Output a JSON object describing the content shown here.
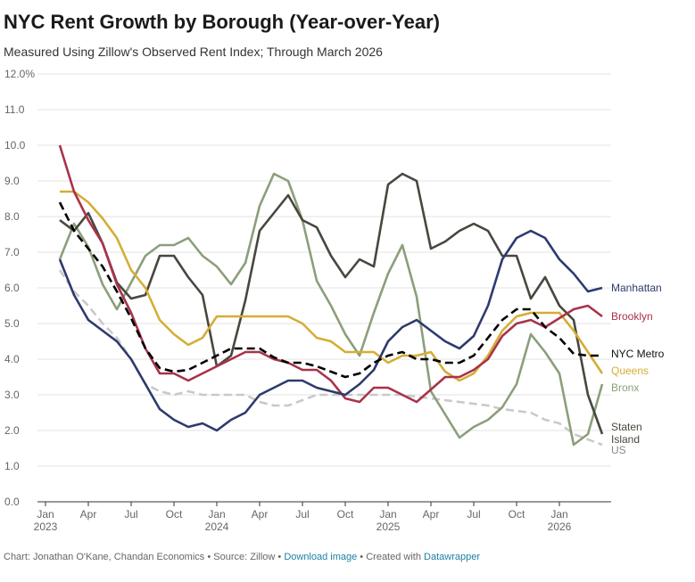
{
  "title": "NYC Rent Growth by Borough (Year-over-Year)",
  "subtitle": "Measured Using Zillow's Observed Rent Index; Through March 2026",
  "footer": {
    "chart_credit": "Chart: Jonathan O'Kane, Chandan Economics",
    "sep1": " • ",
    "source": "Source: Zillow",
    "sep2": " • ",
    "download": "Download image",
    "sep3": " • Created with ",
    "datawrapper": "Datawrapper"
  },
  "chart_data": {
    "type": "line",
    "title": "NYC Rent Growth by Borough (Year-over-Year)",
    "ylim": [
      0,
      12
    ],
    "y_ticks": [
      "0.0",
      "1.0",
      "2.0",
      "3.0",
      "4.0",
      "5.0",
      "6.0",
      "7.0",
      "8.0",
      "9.0",
      "10.0",
      "11.0",
      "12.0%"
    ],
    "x_ticks": [
      {
        "month": "2023-01",
        "label": "Jan",
        "sub": "2023"
      },
      {
        "month": "2023-04",
        "label": "Apr",
        "sub": ""
      },
      {
        "month": "2023-07",
        "label": "Jul",
        "sub": ""
      },
      {
        "month": "2023-10",
        "label": "Oct",
        "sub": ""
      },
      {
        "month": "2024-01",
        "label": "Jan",
        "sub": "2024"
      },
      {
        "month": "2024-04",
        "label": "Apr",
        "sub": ""
      },
      {
        "month": "2024-07",
        "label": "Jul",
        "sub": ""
      },
      {
        "month": "2024-10",
        "label": "Oct",
        "sub": ""
      },
      {
        "month": "2025-01",
        "label": "Jan",
        "sub": "2025"
      },
      {
        "month": "2025-04",
        "label": "Apr",
        "sub": ""
      },
      {
        "month": "2025-07",
        "label": "Jul",
        "sub": ""
      },
      {
        "month": "2025-10",
        "label": "Oct",
        "sub": ""
      },
      {
        "month": "2026-01",
        "label": "Jan",
        "sub": "2026"
      }
    ],
    "x_start": "2023-02",
    "x_end": "2026-04",
    "grid": true,
    "legend": "right-end labels",
    "series": [
      {
        "name": "Manhattan",
        "color": "#2e3a6d",
        "dashed": false,
        "values": [
          6.8,
          5.8,
          5.1,
          4.8,
          4.5,
          4.0,
          3.3,
          2.6,
          2.3,
          2.1,
          2.2,
          2.0,
          2.3,
          2.5,
          3.0,
          3.2,
          3.4,
          3.4,
          3.2,
          3.1,
          3.0,
          3.3,
          3.7,
          4.5,
          4.9,
          5.1,
          4.8,
          4.5,
          4.3,
          4.65,
          5.5,
          6.8,
          7.4,
          7.6,
          7.4,
          6.8,
          6.4,
          5.9,
          6.0
        ]
      },
      {
        "name": "Brooklyn",
        "color": "#a8334a",
        "dashed": false,
        "values": [
          10.0,
          8.7,
          7.9,
          7.25,
          6.1,
          5.3,
          4.3,
          3.6,
          3.6,
          3.4,
          3.6,
          3.8,
          4.0,
          4.2,
          4.2,
          4.0,
          3.9,
          3.7,
          3.7,
          3.4,
          2.9,
          2.8,
          3.2,
          3.2,
          3.0,
          2.8,
          3.15,
          3.5,
          3.5,
          3.7,
          4.0,
          4.65,
          5.0,
          5.1,
          4.9,
          5.15,
          5.4,
          5.5,
          5.2
        ]
      },
      {
        "name": "NYC Metro",
        "color": "#000000",
        "dashed": true,
        "values": [
          8.4,
          7.6,
          7.1,
          6.6,
          5.9,
          5.15,
          4.3,
          3.75,
          3.65,
          3.7,
          3.9,
          4.1,
          4.3,
          4.3,
          4.3,
          4.05,
          3.9,
          3.9,
          3.8,
          3.65,
          3.5,
          3.6,
          3.9,
          4.1,
          4.2,
          4.0,
          4.0,
          3.9,
          3.9,
          4.1,
          4.6,
          5.1,
          5.4,
          5.4,
          4.9,
          4.6,
          4.15,
          4.1,
          4.1
        ]
      },
      {
        "name": "Queens",
        "color": "#d4ae35",
        "dashed": false,
        "values": [
          8.7,
          8.7,
          8.4,
          7.95,
          7.4,
          6.5,
          6.0,
          5.1,
          4.7,
          4.4,
          4.6,
          5.2,
          5.2,
          5.2,
          5.2,
          5.2,
          5.2,
          5.0,
          4.6,
          4.5,
          4.2,
          4.2,
          4.2,
          3.9,
          4.1,
          4.1,
          4.2,
          3.65,
          3.4,
          3.6,
          4.1,
          4.8,
          5.2,
          5.3,
          5.3,
          5.3,
          4.8,
          4.2,
          3.6
        ]
      },
      {
        "name": "Bronx",
        "color": "#8b9f7b",
        "dashed": false,
        "values": [
          6.8,
          7.8,
          7.15,
          6.1,
          5.4,
          6.15,
          6.9,
          7.2,
          7.2,
          7.4,
          6.9,
          6.6,
          6.1,
          6.7,
          8.3,
          9.2,
          9.0,
          7.9,
          6.2,
          5.5,
          4.7,
          4.1,
          5.3,
          6.4,
          7.2,
          5.75,
          3.1,
          2.45,
          1.8,
          2.1,
          2.3,
          2.65,
          3.3,
          4.7,
          4.2,
          3.6,
          1.6,
          1.9,
          3.3
        ]
      },
      {
        "name": "Staten Island",
        "color": "#48473f",
        "dashed": false,
        "values": [
          7.9,
          7.6,
          8.1,
          7.25,
          6.15,
          5.7,
          5.8,
          6.9,
          6.9,
          6.3,
          5.8,
          3.8,
          4.1,
          5.65,
          7.6,
          8.1,
          8.6,
          7.9,
          7.7,
          6.9,
          6.3,
          6.8,
          6.6,
          8.9,
          9.2,
          9.0,
          7.1,
          7.3,
          7.6,
          7.8,
          7.6,
          6.9,
          6.9,
          5.7,
          6.3,
          5.5,
          5.1,
          3.0,
          1.9
        ]
      },
      {
        "name": "US",
        "color": "#c9c9c9",
        "dashed": true,
        "values": [
          6.5,
          5.9,
          5.5,
          5.0,
          4.6,
          4.0,
          3.3,
          3.1,
          3.0,
          3.1,
          3.0,
          3.0,
          3.0,
          3.0,
          2.8,
          2.7,
          2.7,
          2.85,
          3.0,
          3.0,
          3.0,
          3.0,
          3.0,
          3.0,
          3.0,
          2.95,
          2.9,
          2.85,
          2.8,
          2.75,
          2.7,
          2.6,
          2.55,
          2.5,
          2.3,
          2.2,
          1.9,
          1.75,
          1.6
        ]
      }
    ],
    "end_labels": [
      {
        "series": "Manhattan",
        "lines": [
          "Manhattan"
        ]
      },
      {
        "series": "Brooklyn",
        "lines": [
          "Brooklyn"
        ]
      },
      {
        "series": "NYC Metro",
        "lines": [
          "NYC Metro"
        ]
      },
      {
        "series": "Queens",
        "lines": [
          "Queens"
        ]
      },
      {
        "series": "Bronx",
        "lines": [
          "Bronx"
        ]
      },
      {
        "series": "Staten Island",
        "lines": [
          "Staten",
          "Island"
        ]
      },
      {
        "series": "US",
        "lines": [
          "US"
        ]
      }
    ]
  }
}
